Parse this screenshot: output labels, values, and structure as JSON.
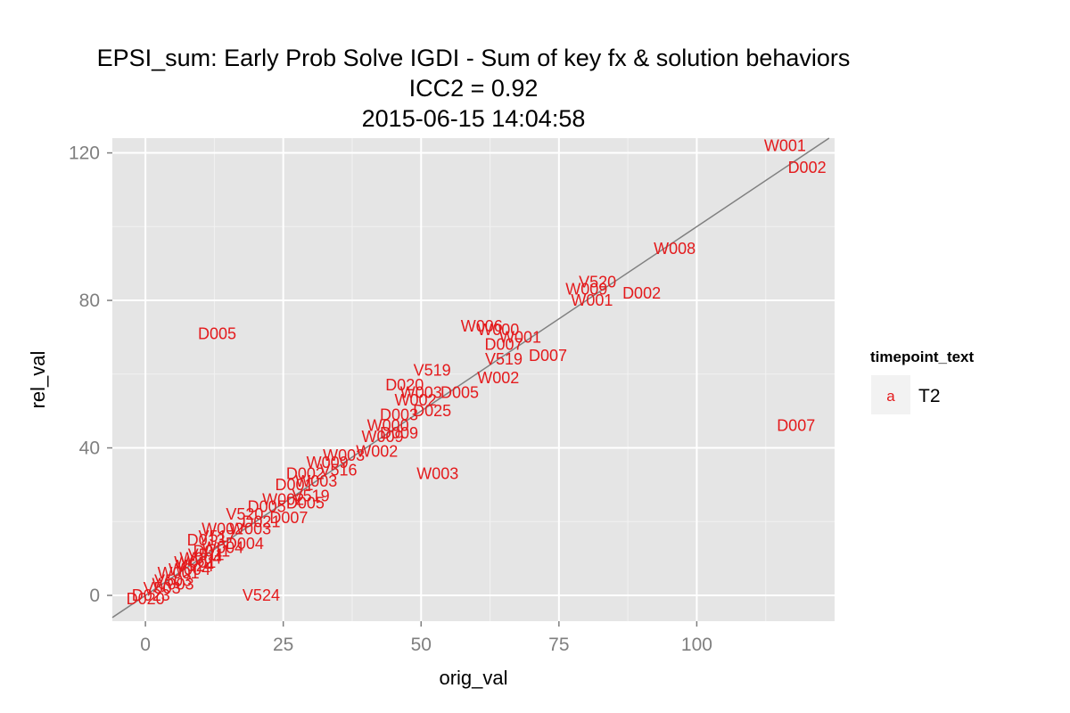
{
  "chart_data": {
    "type": "scatter",
    "title_lines": [
      "EPSI_sum: Early Prob Solve IGDI - Sum of key fx & solution behaviors",
      "ICC2 = 0.92",
      "2015-06-15 14:04:58"
    ],
    "xlabel": "orig_val",
    "ylabel": "rel_val",
    "xlim": [
      -6,
      125
    ],
    "ylim": [
      -7,
      124
    ],
    "x_ticks": [
      0,
      25,
      50,
      75,
      100
    ],
    "y_ticks": [
      0,
      40,
      80,
      120
    ],
    "grid": true,
    "reference_line": {
      "type": "identity",
      "color": "#808080"
    },
    "legend": {
      "title": "timepoint_text",
      "position": "right",
      "entries": [
        {
          "key": "a",
          "label": "T2",
          "color": "#e41a1c"
        }
      ]
    },
    "points": [
      {
        "label": "W001",
        "x": 116,
        "y": 122
      },
      {
        "label": "D002",
        "x": 120,
        "y": 116
      },
      {
        "label": "W008",
        "x": 96,
        "y": 94
      },
      {
        "label": "V520",
        "x": 82,
        "y": 85
      },
      {
        "label": "W009",
        "x": 80,
        "y": 83
      },
      {
        "label": "W001",
        "x": 81,
        "y": 80
      },
      {
        "label": "D002",
        "x": 90,
        "y": 82
      },
      {
        "label": "D005",
        "x": 13,
        "y": 71
      },
      {
        "label": "W006",
        "x": 61,
        "y": 73
      },
      {
        "label": "W000",
        "x": 64,
        "y": 72
      },
      {
        "label": "W001",
        "x": 68,
        "y": 70
      },
      {
        "label": "D007",
        "x": 65,
        "y": 68
      },
      {
        "label": "D007",
        "x": 73,
        "y": 65
      },
      {
        "label": "V519",
        "x": 65,
        "y": 64
      },
      {
        "label": "V519",
        "x": 52,
        "y": 61
      },
      {
        "label": "W002",
        "x": 64,
        "y": 59
      },
      {
        "label": "D020",
        "x": 47,
        "y": 57
      },
      {
        "label": "D005",
        "x": 57,
        "y": 55
      },
      {
        "label": "W003",
        "x": 50,
        "y": 55
      },
      {
        "label": "W002",
        "x": 49,
        "y": 53
      },
      {
        "label": "D025",
        "x": 52,
        "y": 50
      },
      {
        "label": "D003",
        "x": 46,
        "y": 49
      },
      {
        "label": "W000",
        "x": 44,
        "y": 46
      },
      {
        "label": "D009",
        "x": 46,
        "y": 44
      },
      {
        "label": "W009",
        "x": 43,
        "y": 43
      },
      {
        "label": "W002",
        "x": 42,
        "y": 39
      },
      {
        "label": "W003",
        "x": 53,
        "y": 33
      },
      {
        "label": "D007",
        "x": 118,
        "y": 46
      },
      {
        "label": "W003",
        "x": 36,
        "y": 38
      },
      {
        "label": "W009",
        "x": 33,
        "y": 36
      },
      {
        "label": "V516",
        "x": 35,
        "y": 34
      },
      {
        "label": "D002",
        "x": 29,
        "y": 33
      },
      {
        "label": "W003",
        "x": 31,
        "y": 31
      },
      {
        "label": "D001",
        "x": 27,
        "y": 30
      },
      {
        "label": "V519",
        "x": 30,
        "y": 27
      },
      {
        "label": "D005",
        "x": 29,
        "y": 25
      },
      {
        "label": "W002",
        "x": 25,
        "y": 26
      },
      {
        "label": "D007",
        "x": 26,
        "y": 21
      },
      {
        "label": "D005",
        "x": 22,
        "y": 24
      },
      {
        "label": "V520",
        "x": 18,
        "y": 22
      },
      {
        "label": "D021",
        "x": 21,
        "y": 20
      },
      {
        "label": "W003",
        "x": 19,
        "y": 18
      },
      {
        "label": "W002",
        "x": 14,
        "y": 18
      },
      {
        "label": "V517",
        "x": 13,
        "y": 16
      },
      {
        "label": "D013",
        "x": 11,
        "y": 15
      },
      {
        "label": "D004",
        "x": 18,
        "y": 14
      },
      {
        "label": "W004",
        "x": 14,
        "y": 13
      },
      {
        "label": "D011",
        "x": 12,
        "y": 12
      },
      {
        "label": "V511",
        "x": 11,
        "y": 11
      },
      {
        "label": "W004",
        "x": 10,
        "y": 10
      },
      {
        "label": "W001",
        "x": 9,
        "y": 9
      },
      {
        "label": "V524",
        "x": 9,
        "y": 8
      },
      {
        "label": "W004",
        "x": 8,
        "y": 7
      },
      {
        "label": "W001",
        "x": 6,
        "y": 6
      },
      {
        "label": "V503",
        "x": 5,
        "y": 4
      },
      {
        "label": "W003",
        "x": 5,
        "y": 3
      },
      {
        "label": "V503",
        "x": 3,
        "y": 2
      },
      {
        "label": "D023",
        "x": 1,
        "y": 0
      },
      {
        "label": "D020",
        "x": 0,
        "y": -1
      },
      {
        "label": "V524",
        "x": 21,
        "y": 0
      }
    ]
  }
}
